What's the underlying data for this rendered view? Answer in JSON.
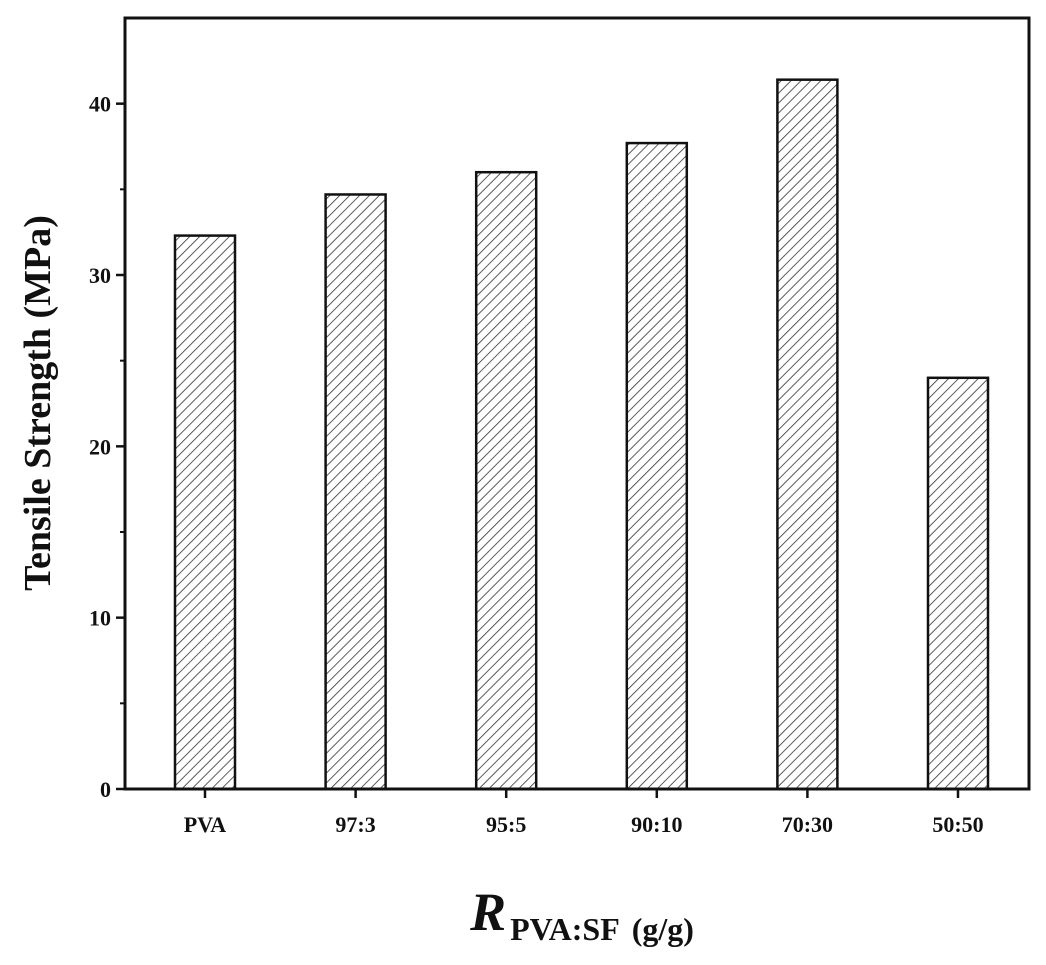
{
  "chart_data": {
    "type": "bar",
    "title": "",
    "ylabel": "Tensile Strength (MPa)",
    "xlabel": {
      "main": "R",
      "subscript": "PVA:SF",
      "unit": "(g/g)"
    },
    "categories": [
      "PVA",
      "97:3",
      "95:5",
      "90:10",
      "70:30",
      "50:50"
    ],
    "values": [
      32.3,
      34.7,
      36.0,
      37.7,
      41.4,
      24.0
    ],
    "ylim": [
      0,
      45
    ],
    "yticks": [
      0,
      10,
      20,
      30,
      40
    ],
    "grid": false,
    "legend": "none",
    "bar_fill": "diagonal-hatch",
    "colors": {
      "bar_stroke": "#111111",
      "hatch": "#333333",
      "axis": "#111111"
    }
  }
}
